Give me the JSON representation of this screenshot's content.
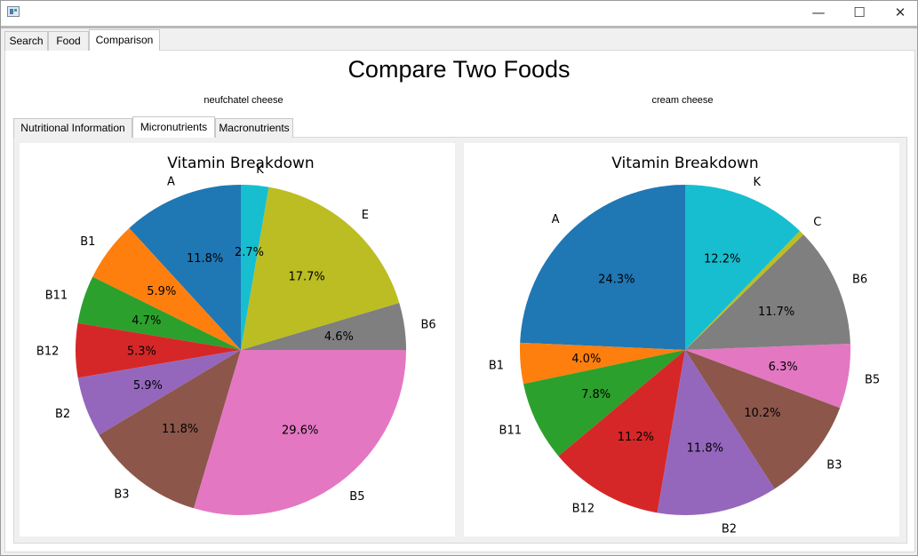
{
  "window": {
    "min_icon": "minimize-icon",
    "max_icon": "maximize-icon",
    "close_icon": "close-icon"
  },
  "tabs": [
    {
      "label": "Search"
    },
    {
      "label": "Food"
    },
    {
      "label": "Comparison"
    }
  ],
  "active_tab": "Comparison",
  "heading": "Compare Two Foods",
  "foods": {
    "left": "neufchatel cheese",
    "right": "cream cheese"
  },
  "sub_tabs": [
    {
      "label": "Nutritional Information"
    },
    {
      "label": "Micronutrients"
    },
    {
      "label": "Macronutrients"
    }
  ],
  "active_sub_tab": "Micronutrients",
  "chart_data": [
    {
      "type": "pie",
      "title": "Vitamin Breakdown",
      "start_angle_deg": 90,
      "direction": "counterclockwise",
      "slices": [
        {
          "label": "A",
          "value": 11.8,
          "pct_label": "11.8%",
          "color": "#1f77b4"
        },
        {
          "label": "B1",
          "value": 5.9,
          "pct_label": "5.9%",
          "color": "#ff7f0e"
        },
        {
          "label": "B11",
          "value": 4.7,
          "pct_label": "4.7%",
          "color": "#2ca02c"
        },
        {
          "label": "B12",
          "value": 5.3,
          "pct_label": "5.3%",
          "color": "#d62728"
        },
        {
          "label": "B2",
          "value": 5.9,
          "pct_label": "5.9%",
          "color": "#9467bd"
        },
        {
          "label": "B3",
          "value": 11.8,
          "pct_label": "11.8%",
          "color": "#8c564b"
        },
        {
          "label": "B5",
          "value": 29.6,
          "pct_label": "29.6%",
          "color": "#e377c2"
        },
        {
          "label": "B6",
          "value": 4.6,
          "pct_label": "4.6%",
          "color": "#7f7f7f"
        },
        {
          "label": "E",
          "value": 17.7,
          "pct_label": "17.7%",
          "color": "#bcbd22"
        },
        {
          "label": "K",
          "value": 2.7,
          "pct_label": "2.7%",
          "color": "#17becf"
        }
      ]
    },
    {
      "type": "pie",
      "title": "Vitamin Breakdown",
      "start_angle_deg": 90,
      "direction": "counterclockwise",
      "slices": [
        {
          "label": "A",
          "value": 24.3,
          "pct_label": "24.3%",
          "color": "#1f77b4"
        },
        {
          "label": "B1",
          "value": 4.0,
          "pct_label": "4.0%",
          "color": "#ff7f0e"
        },
        {
          "label": "B11",
          "value": 7.8,
          "pct_label": "7.8%",
          "color": "#2ca02c"
        },
        {
          "label": "B12",
          "value": 11.2,
          "pct_label": "11.2%",
          "color": "#d62728"
        },
        {
          "label": "B2",
          "value": 11.8,
          "pct_label": "11.8%",
          "color": "#9467bd"
        },
        {
          "label": "B3",
          "value": 10.2,
          "pct_label": "10.2%",
          "color": "#8c564b"
        },
        {
          "label": "B5",
          "value": 6.3,
          "pct_label": "6.3%",
          "color": "#e377c2"
        },
        {
          "label": "B6",
          "value": 11.7,
          "pct_label": "11.7%",
          "color": "#7f7f7f"
        },
        {
          "label": "C",
          "value": 0.5,
          "pct_label": "",
          "color": "#bcbd22"
        },
        {
          "label": "K",
          "value": 12.2,
          "pct_label": "12.2%",
          "color": "#17becf"
        }
      ]
    }
  ]
}
